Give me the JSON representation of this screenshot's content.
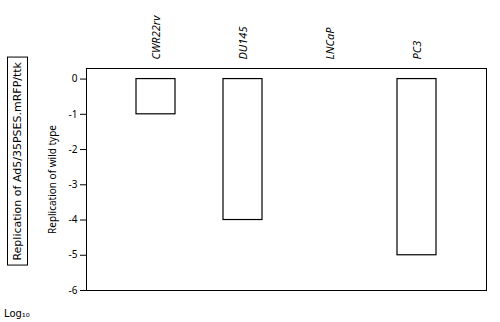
{
  "chart_data": {
    "type": "bar",
    "categories": [
      "CWR22rv",
      "DU145",
      "LNCaP",
      "PC3"
    ],
    "values": [
      -1.0,
      -4.0,
      0.0,
      -5.0
    ],
    "color": "#ffffff",
    "ylabel": "Replication of wild type",
    "annotations": [
      "Replication of Ad5/35PSES.mRFP/ttk",
      "Log₁₀"
    ],
    "ylim": [
      -6,
      0.3
    ],
    "yticks": [
      0,
      -1,
      -2,
      -3,
      -4,
      -5,
      -6
    ],
    "grid": false
  }
}
